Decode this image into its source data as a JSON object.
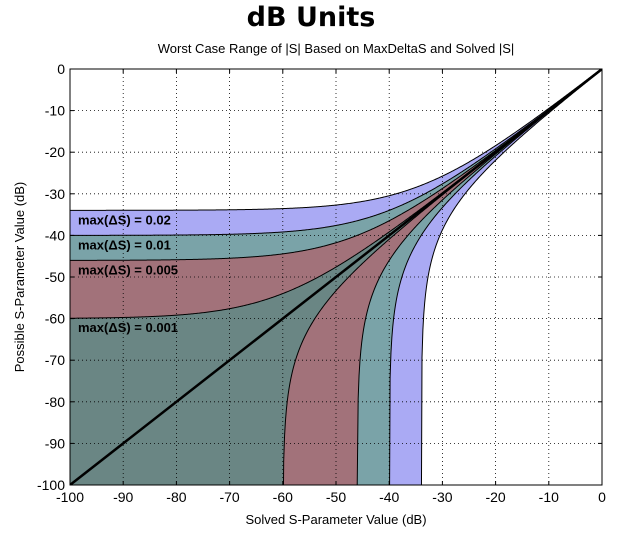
{
  "header": {
    "title": "dB Units"
  },
  "chart_data": {
    "type": "area",
    "title": "Worst Case Range of |S| Based on MaxDeltaS and Solved |S|",
    "xlabel": "Solved S-Parameter Value (dB)",
    "ylabel": "Possible S-Parameter Value (dB)",
    "xlim": [
      -100,
      0
    ],
    "ylim": [
      -100,
      0
    ],
    "xticks": [
      -100,
      -90,
      -80,
      -70,
      -60,
      -50,
      -40,
      -30,
      -20,
      -10,
      0
    ],
    "yticks": [
      0,
      -10,
      -20,
      -30,
      -40,
      -50,
      -60,
      -70,
      -80,
      -90,
      -100
    ],
    "grid": true,
    "identity_line": {
      "x": [
        -100,
        0
      ],
      "y": [
        -100,
        0
      ],
      "color": "#000000"
    },
    "series": [
      {
        "name": "max(ΔS) = 0.02",
        "max_delta_s": 0.02,
        "color": "#aaaaf4",
        "label": "max(ΔS) = 0.02"
      },
      {
        "name": "max(ΔS) = 0.01",
        "max_delta_s": 0.01,
        "color": "#7aa3a8",
        "label": "max(ΔS) = 0.01"
      },
      {
        "name": "max(ΔS) = 0.005",
        "max_delta_s": 0.005,
        "color": "#a2727a",
        "label": "max(ΔS) = 0.005"
      },
      {
        "name": "max(ΔS) = 0.001",
        "max_delta_s": 0.001,
        "color": "#6a8684",
        "label": "max(ΔS) = 0.001"
      }
    ]
  }
}
